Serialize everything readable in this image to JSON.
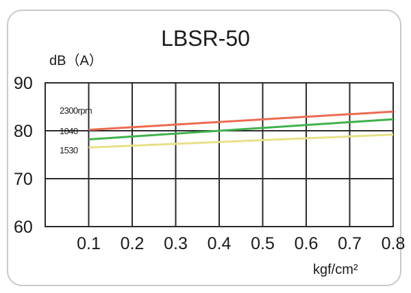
{
  "chart_data": {
    "type": "line",
    "title": "LBSR-50",
    "ylabel": "dB（A）",
    "xlabel": "kgf/cm²",
    "x_ticks": [
      "0.1",
      "0.2",
      "0.3",
      "0.4",
      "0.5",
      "0.6",
      "0.7",
      "0.8"
    ],
    "y_ticks": [
      "60",
      "70",
      "80",
      "90"
    ],
    "xlim": [
      0.0,
      0.8
    ],
    "ylim": [
      60,
      90
    ],
    "grid": true,
    "series": [
      {
        "name": "2300rpm",
        "x": [
          0.1,
          0.8
        ],
        "y": [
          80.2,
          84.0
        ],
        "color": "#ec6a50"
      },
      {
        "name": "1040",
        "x": [
          0.1,
          0.8
        ],
        "y": [
          78.2,
          82.4
        ],
        "color": "#3fb24a"
      },
      {
        "name": "1530",
        "x": [
          0.1,
          0.8
        ],
        "y": [
          76.5,
          79.2
        ],
        "color": "#e7e088"
      }
    ]
  }
}
